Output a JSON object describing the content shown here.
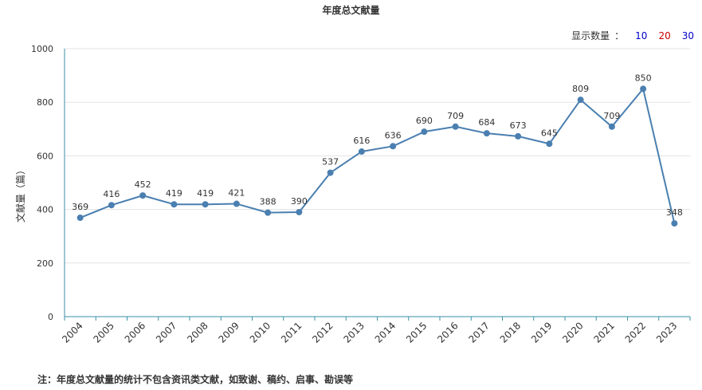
{
  "count_selector": {
    "label": "显示数量",
    "separator": "：",
    "options": [
      "10",
      "20",
      "30"
    ]
  },
  "footnote": "注：年度总文献量的统计不包含资讯类文献，如致谢、稿约、启事、勘误等",
  "colors": {
    "line": "#4a7fb0",
    "axis": "#3a8fa8",
    "grid": "#e3e3e3"
  },
  "chart_data": {
    "type": "line",
    "title": "年度总文献量",
    "ylabel": "文献量（篇）",
    "xlabel": "",
    "ylim": [
      0,
      1000
    ],
    "yticks": [
      0,
      200,
      400,
      600,
      800,
      1000
    ],
    "grid": true,
    "categories": [
      "2004",
      "2005",
      "2006",
      "2007",
      "2008",
      "2009",
      "2010",
      "2011",
      "2012",
      "2013",
      "2014",
      "2015",
      "2016",
      "2017",
      "2018",
      "2019",
      "2020",
      "2021",
      "2022",
      "2023"
    ],
    "values": [
      369,
      416,
      452,
      419,
      419,
      421,
      388,
      390,
      537,
      616,
      636,
      690,
      709,
      684,
      673,
      645,
      809,
      709,
      850,
      348
    ]
  }
}
